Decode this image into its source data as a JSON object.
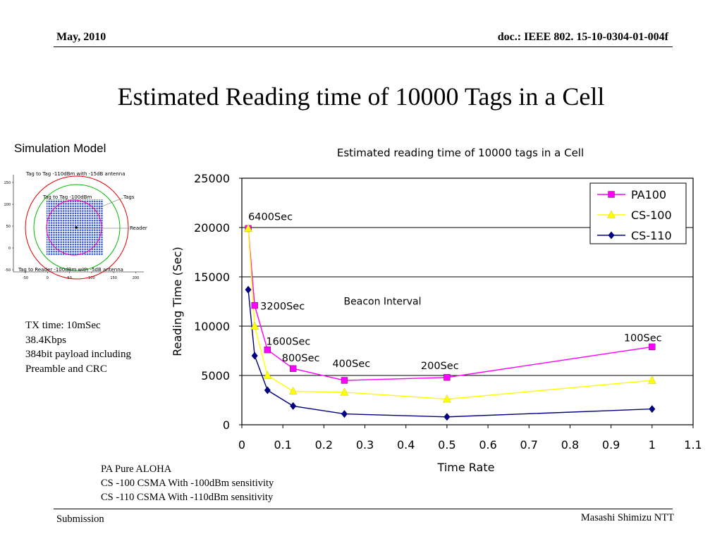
{
  "header": {
    "date": "May, 2010",
    "doc_id": "doc.: IEEE 802. 15-10-0304-01-004f"
  },
  "slide": {
    "title": "Estimated Reading time of 10000 Tags in a Cell",
    "simulation_label": "Simulation Model",
    "tx_info": [
      "TX time: 10mSec",
      "38.4Kbps",
      "384bit payload including",
      "Preamble and CRC"
    ],
    "legend_notes": [
      "PA Pure ALOHA",
      "CS -100 CSMA With -100dBm sensitivity",
      "CS -110 CSMA With -110dBm sensitivity"
    ]
  },
  "sim_model": {
    "labels": {
      "top": "Tag to Tag -110dBm with -15dB antenna",
      "inner": "Tag to Tag -100dBm",
      "tags": "Tags",
      "reader": "Reader",
      "bottom": "Tag to Reader -100dBm with -5dB antenna"
    },
    "y_ticks": [
      "150",
      "100",
      "50",
      "0",
      "-50"
    ],
    "x_ticks": [
      "-50",
      "0",
      "50",
      "100",
      "150",
      "200"
    ]
  },
  "chart_data": {
    "type": "line",
    "title": "Estimated reading time of 10000 tags in a Cell",
    "xlabel": "Time Rate",
    "ylabel": "Reading Time (Sec)",
    "xlim": [
      0,
      1.1
    ],
    "ylim": [
      0,
      25000
    ],
    "x_ticks": [
      "0",
      "0.1",
      "0.2",
      "0.3",
      "0.4",
      "0.5",
      "0.6",
      "0.7",
      "0.8",
      "0.9",
      "1",
      "1.1"
    ],
    "y_ticks": [
      "0",
      "5000",
      "10000",
      "15000",
      "20000",
      "25000"
    ],
    "grid": "horizontal",
    "legend_position": "top-right",
    "series": [
      {
        "name": "PA100",
        "color": "#ff00ff",
        "marker": "square",
        "x": [
          0.0156,
          0.03125,
          0.0625,
          0.125,
          0.25,
          0.5,
          1.0
        ],
        "y": [
          19900,
          12100,
          7600,
          5700,
          4500,
          4800,
          7900
        ]
      },
      {
        "name": "CS-100",
        "color": "#ffff00",
        "marker": "triangle",
        "x": [
          0.0156,
          0.03125,
          0.0625,
          0.125,
          0.25,
          0.5,
          1.0
        ],
        "y": [
          19900,
          10000,
          5000,
          3400,
          3300,
          2600,
          4500
        ]
      },
      {
        "name": "CS-110",
        "color": "#000080",
        "marker": "diamond",
        "x": [
          0.0156,
          0.03125,
          0.0625,
          0.125,
          0.25,
          0.5,
          1.0
        ],
        "y": [
          13700,
          7000,
          3500,
          1900,
          1100,
          800,
          1600
        ]
      }
    ],
    "annotations": [
      {
        "text": "6400Sec",
        "x": 0.0156,
        "y": 19900,
        "font": "sans"
      },
      {
        "text": "3200Sec",
        "x": 0.03125,
        "y": 12100,
        "font": "sans"
      },
      {
        "text": "1600Sec",
        "x": 0.0625,
        "y": 7600,
        "font": "sans"
      },
      {
        "text": "800Sec",
        "x": 0.125,
        "y": 5700,
        "font": "sans"
      },
      {
        "text": "400Sec",
        "x": 0.25,
        "y": 4500,
        "font": "sans"
      },
      {
        "text": "200Sec",
        "x": 0.5,
        "y": 4800,
        "font": "sans"
      },
      {
        "text": "100Sec",
        "x": 1.0,
        "y": 7900,
        "font": "sans"
      },
      {
        "text": "Beacon Interval",
        "x": 0.19,
        "y": 12100,
        "font": "serif"
      }
    ]
  },
  "footer": {
    "left": "Submission",
    "right": "Masashi Shimizu NTT"
  }
}
